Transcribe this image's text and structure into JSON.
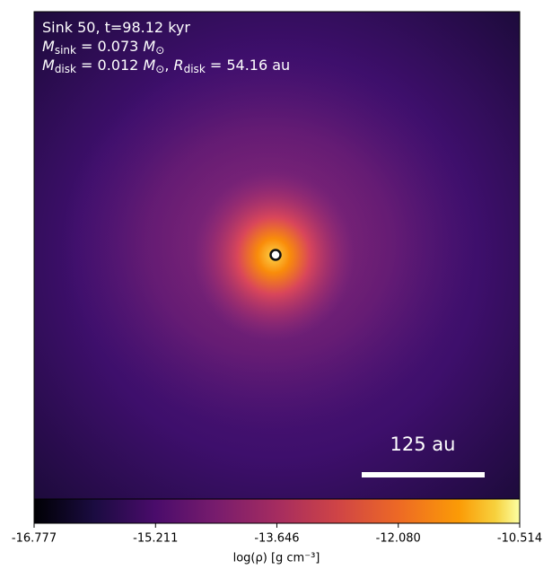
{
  "chart_data": {
    "type": "heatmap",
    "annotations": [
      [
        {
          "text": "Sink 50, t=98.12 kyr"
        }
      ],
      [
        {
          "text": "M",
          "style": "italic"
        },
        {
          "text": "sink",
          "style": "sub"
        },
        {
          "text": " = 0.073 "
        },
        {
          "text": "M",
          "style": "italic"
        },
        {
          "text": "⊙",
          "style": "sub"
        }
      ],
      [
        {
          "text": "M",
          "style": "italic"
        },
        {
          "text": "disk",
          "style": "sub"
        },
        {
          "text": " = 0.012 "
        },
        {
          "text": "M",
          "style": "italic"
        },
        {
          "text": "⊙",
          "style": "sub"
        },
        {
          "text": ", "
        },
        {
          "text": "R",
          "style": "italic"
        },
        {
          "text": "disk",
          "style": "sub"
        },
        {
          "text": " = 54.16 au"
        }
      ]
    ],
    "scale_bar": "125 au",
    "colorbar": {
      "label": "log(ρ) [g cm⁻³]",
      "lim": [
        -16.777,
        -10.514
      ],
      "ticks": [
        -16.777,
        -15.211,
        -13.646,
        {
          "value": -12.08,
          "label": "-12.080"
        },
        -10.514
      ]
    }
  }
}
